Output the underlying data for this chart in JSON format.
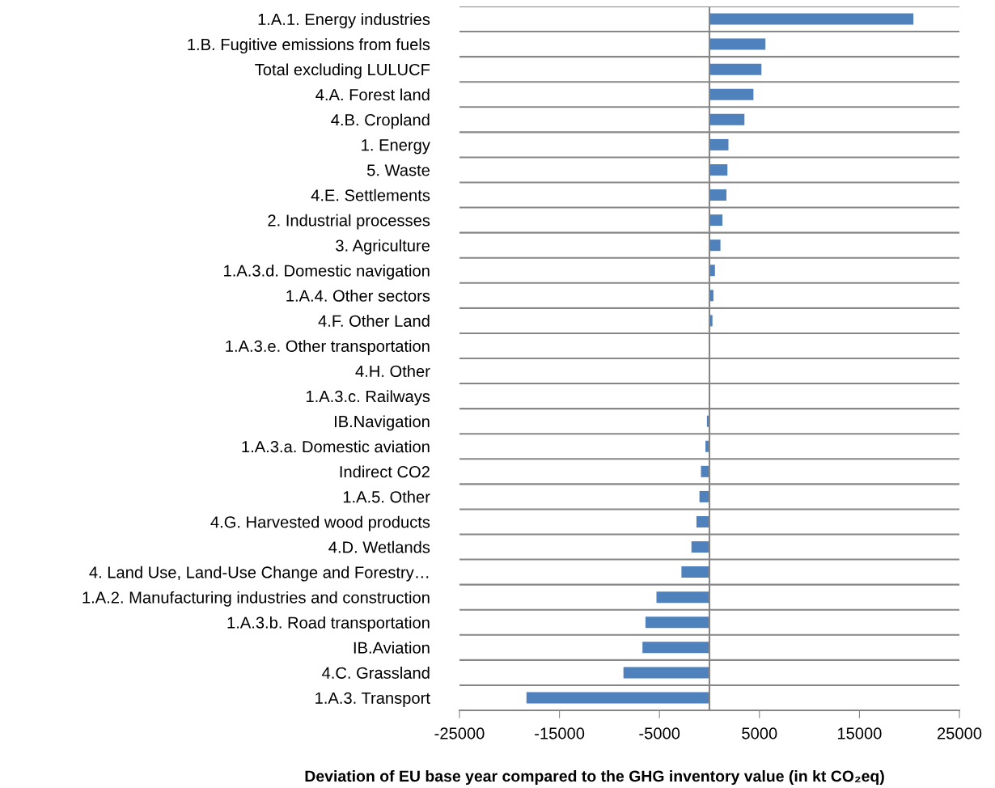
{
  "chart_data": {
    "type": "bar",
    "orientation": "horizontal",
    "xlabel": "Deviation of EU base year compared to the GHG inventory value (in kt CO₂eq)",
    "categories": [
      "1.A.1. Energy industries",
      "1.B. Fugitive emissions from fuels",
      "Total excluding LULUCF",
      "4.A. Forest land",
      "4.B. Cropland",
      "1. Energy",
      "5. Waste",
      "4.E. Settlements",
      "2. Industrial processes",
      "3. Agriculture",
      "1.A.3.d. Domestic navigation",
      "1.A.4. Other sectors",
      "4.F. Other Land",
      "1.A.3.e. Other transportation",
      "4.H. Other",
      "1.A.3.c. Railways",
      "IB.Navigation",
      "1.A.3.a. Domestic aviation",
      "Indirect CO2",
      "1.A.5. Other",
      "4.G. Harvested wood products",
      "4.D. Wetlands",
      "4. Land Use, Land-Use Change and Forestry…",
      "1.A.2. Manufacturing industries and construction",
      "1.A.3.b. Road transportation",
      "IB.Aviation",
      "4.C. Grassland",
      "1.A.3. Transport"
    ],
    "values": [
      20400,
      5600,
      5200,
      4400,
      3500,
      1900,
      1800,
      1700,
      1300,
      1100,
      550,
      400,
      300,
      20,
      -20,
      -20,
      -250,
      -400,
      -850,
      -1000,
      -1300,
      -1800,
      -2800,
      -5300,
      -6400,
      -6700,
      -8600,
      -18300
    ],
    "color": "#4f81bd",
    "xlim": [
      -25000,
      25000
    ],
    "xticks": [
      -25000,
      -15000,
      -5000,
      5000,
      15000,
      25000
    ],
    "grid": "y",
    "legend": false
  }
}
